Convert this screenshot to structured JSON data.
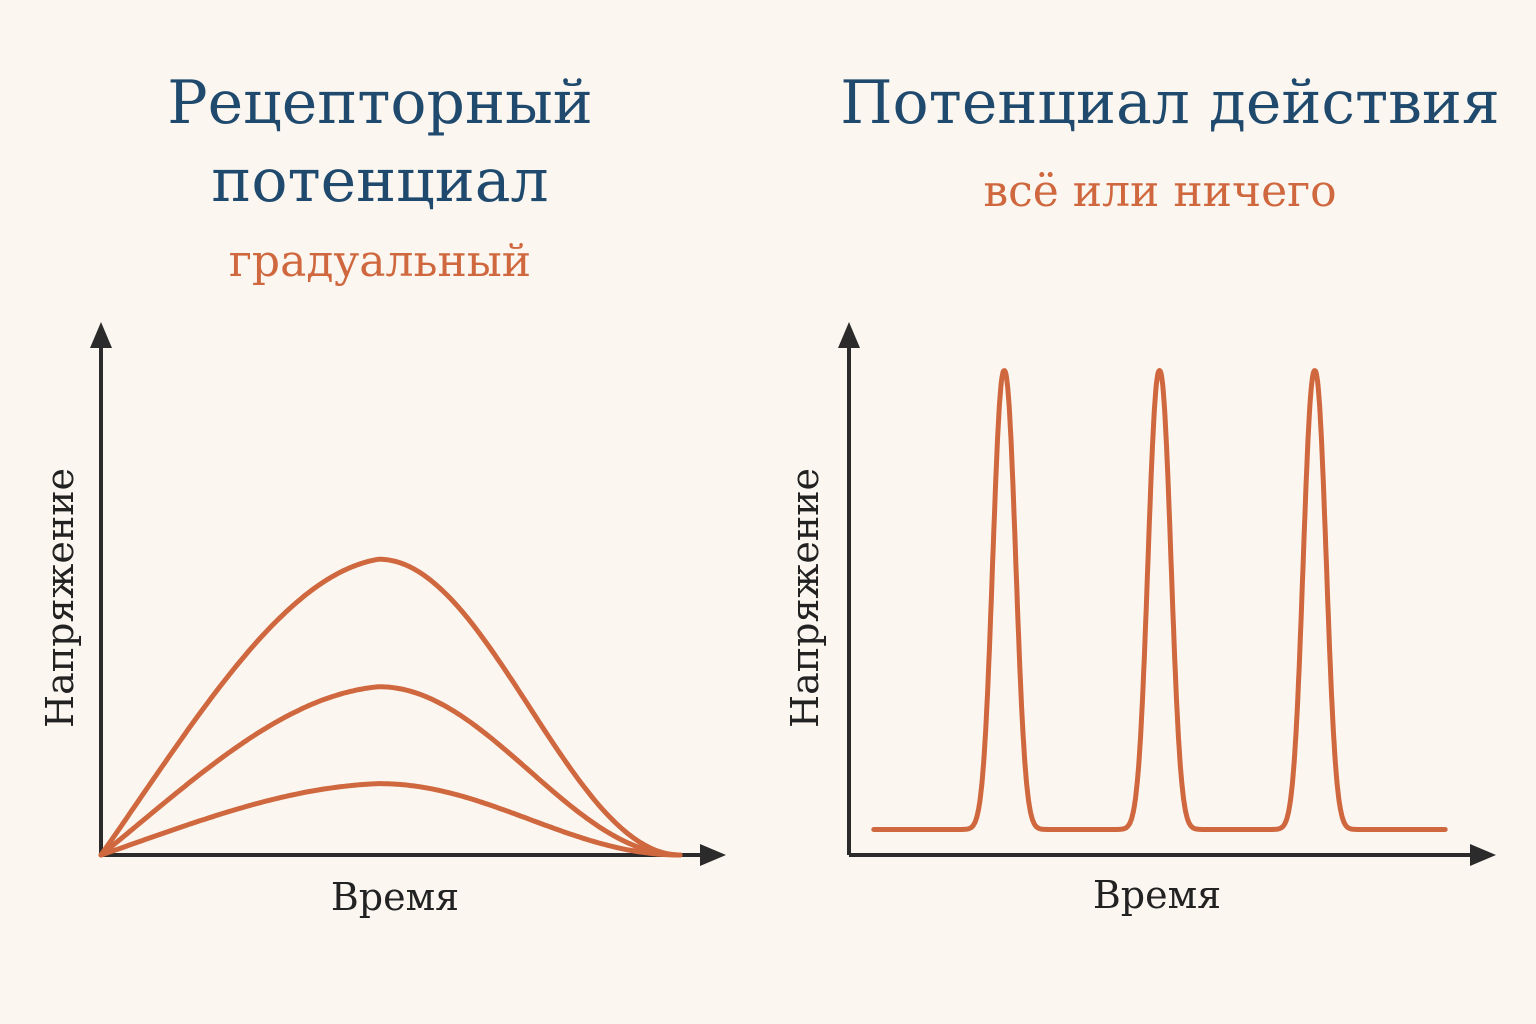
{
  "left_panel": {
    "title_line1": "Рецепторный",
    "title_line2": "потенциал",
    "subtitle": "градуальный",
    "x_axis_label": "Время",
    "y_axis_label": "Напряжение"
  },
  "right_panel": {
    "title": "Потенциал действия",
    "subtitle": "всё или ничего",
    "x_axis_label": "Время",
    "y_axis_label": "Напряжение"
  },
  "colors": {
    "title": "#1f4a6e",
    "accent": "#d0683f",
    "axis": "#2b2b2b",
    "background": "#fbf7f0"
  },
  "chart_data": [
    {
      "type": "line",
      "title": "Рецепторный потенциал",
      "subtitle": "градуальный",
      "xlabel": "Время",
      "ylabel": "Напряжение",
      "x_ticks": [],
      "y_ticks": [],
      "grid": false,
      "xlim": [
        0,
        1
      ],
      "ylim": [
        0,
        1
      ],
      "series": [
        {
          "x": [
            0,
            0.48,
            1
          ],
          "y": [
            0,
            0.58,
            0
          ]
        },
        {
          "x": [
            0,
            0.48,
            1
          ],
          "y": [
            0,
            0.33,
            0
          ]
        },
        {
          "x": [
            0,
            0.48,
            1
          ],
          "y": [
            0,
            0.14,
            0
          ]
        }
      ]
    },
    {
      "type": "line",
      "title": "Потенциал действия",
      "subtitle": "всё или ничего",
      "xlabel": "Время",
      "ylabel": "Напряжение",
      "x_ticks": [],
      "y_ticks": [],
      "grid": false,
      "xlim": [
        0,
        1
      ],
      "ylim": [
        0,
        1
      ],
      "baseline": 0.05,
      "peak": 0.95,
      "series": [
        {
          "x": [
            0.04,
            0.25,
            0.5,
            0.75,
            0.96
          ],
          "y": [
            0.05,
            0.95,
            0.95,
            0.95,
            0.05
          ]
        }
      ]
    }
  ]
}
